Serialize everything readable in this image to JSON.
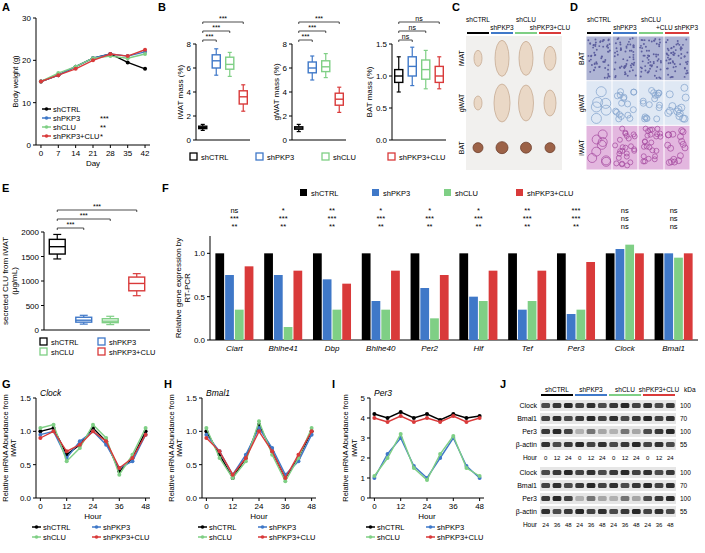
{
  "chart_data": [
    {
      "type": "line",
      "panel": "A",
      "x_label": "Day",
      "y_label": "Body weight (g)",
      "x": [
        0,
        7,
        14,
        21,
        28,
        35,
        42
      ],
      "xlim": [
        -2,
        44
      ],
      "xticks": [
        0,
        7,
        14,
        21,
        28,
        35,
        42
      ],
      "ylim": [
        0,
        30
      ],
      "yticks": [
        0,
        10,
        20,
        30
      ],
      "legend": "lower left",
      "marker": "circle",
      "annotations": [
        "***",
        "**",
        "*"
      ],
      "series": [
        {
          "name": "shCTRL",
          "color": "#000000",
          "values": [
            15,
            16.5,
            18.5,
            20.5,
            21.5,
            19.5,
            18
          ]
        },
        {
          "name": "shPKP3",
          "color": "#3f78c8",
          "values": [
            15,
            16.5,
            18.5,
            20.5,
            21.5,
            21,
            22
          ]
        },
        {
          "name": "shCLU",
          "color": "#7fcf85",
          "values": [
            15,
            17,
            18.5,
            20.5,
            21,
            20.5,
            21.5
          ]
        },
        {
          "name": "shPKP3+CLU",
          "color": "#d93a3a",
          "values": [
            15,
            16.5,
            18,
            20,
            21.5,
            21,
            22.5
          ]
        }
      ]
    },
    {
      "type": "box",
      "panel": "B",
      "legend": "bottom",
      "series": [
        {
          "name": "shCTRL",
          "color": "#000000"
        },
        {
          "name": "shPKP3",
          "color": "#3f78c8"
        },
        {
          "name": "shCLU",
          "color": "#7fcf85"
        },
        {
          "name": "shPKP3+CLU",
          "color": "#d93a3a"
        }
      ],
      "charts": [
        {
          "y_label": "iWAT mass (%)",
          "ylim": [
            0,
            8
          ],
          "yticks": [
            0,
            2,
            4,
            6,
            8
          ],
          "annotations": [
            "***",
            "***",
            "***"
          ],
          "boxes": [
            {
              "min": 0.8,
              "q1": 0.95,
              "median": 1.05,
              "q3": 1.15,
              "max": 1.3
            },
            {
              "min": 5.4,
              "q1": 6.0,
              "median": 6.6,
              "q3": 7.1,
              "max": 7.6
            },
            {
              "min": 5.3,
              "q1": 5.9,
              "median": 6.3,
              "q3": 6.9,
              "max": 7.3
            },
            {
              "min": 2.4,
              "q1": 3.0,
              "median": 3.6,
              "q3": 4.1,
              "max": 4.6
            }
          ]
        },
        {
          "y_label": "gWAT mass (%)",
          "ylim": [
            0,
            8
          ],
          "yticks": [
            0,
            2,
            4,
            6,
            8
          ],
          "annotations": [
            "***",
            "***",
            "***"
          ],
          "boxes": [
            {
              "min": 0.7,
              "q1": 0.9,
              "median": 1.0,
              "q3": 1.1,
              "max": 1.3
            },
            {
              "min": 5.0,
              "q1": 5.6,
              "median": 6.0,
              "q3": 6.5,
              "max": 7.0
            },
            {
              "min": 5.2,
              "q1": 5.7,
              "median": 6.1,
              "q3": 6.6,
              "max": 7.2
            },
            {
              "min": 2.3,
              "q1": 2.9,
              "median": 3.4,
              "q3": 3.9,
              "max": 4.4
            }
          ]
        },
        {
          "y_label": "BAT mass (%)",
          "ylim": [
            0,
            1.5
          ],
          "yticks": [
            {
              "value": 0,
              "label": "0.0"
            },
            {
              "value": 0.5,
              "label": "0.5"
            },
            {
              "value": 1,
              "label": "1.0"
            },
            {
              "value": 1.5,
              "label": "1.5"
            }
          ],
          "annotations": [
            "ns",
            "ns",
            "ns"
          ],
          "boxes": [
            {
              "min": 0.75,
              "q1": 0.9,
              "median": 1.0,
              "q3": 1.1,
              "max": 1.3
            },
            {
              "min": 0.85,
              "q1": 1.0,
              "median": 1.15,
              "q3": 1.3,
              "max": 1.45
            },
            {
              "min": 0.8,
              "q1": 0.95,
              "median": 1.1,
              "q3": 1.25,
              "max": 1.4
            },
            {
              "min": 0.8,
              "q1": 0.9,
              "median": 1.0,
              "q3": 1.15,
              "max": 1.3
            }
          ]
        }
      ]
    },
    {
      "type": "image",
      "panel": "C",
      "columns": [
        "shCTRL",
        "shPKP3",
        "shCLU",
        "shPKP3+CLU"
      ],
      "colors": [
        "#000000",
        "#3f78c8",
        "#7fcf85",
        "#d93a3a"
      ],
      "rows": [
        "iWAT",
        "gWAT",
        "BAT"
      ]
    },
    {
      "type": "image",
      "panel": "D",
      "columns": [
        "shCTRL",
        "shPKP3",
        "shCLU",
        "+CLU shPKP3"
      ],
      "colors": [
        "#000000",
        "#3f78c8",
        "#7fcf85",
        "#d93a3a"
      ],
      "rows": [
        "BAT",
        "gWAT",
        "iWAT"
      ]
    },
    {
      "type": "box",
      "panel": "E",
      "legend": "bottom",
      "series": [
        {
          "name": "shCTRL",
          "color": "#000000"
        },
        {
          "name": "shPKP3",
          "color": "#3f78c8"
        },
        {
          "name": "shCLU",
          "color": "#7fcf85"
        },
        {
          "name": "shPKP3+CLU",
          "color": "#d93a3a"
        }
      ],
      "charts": [
        {
          "y_label": "secreted CLU from iWAT (μg/mL)",
          "ylim": [
            0,
            2000
          ],
          "yticks": [
            0,
            500,
            1000,
            1500,
            2000
          ],
          "annotations": [
            "***",
            "***",
            "***"
          ],
          "boxes": [
            {
              "min": 1450,
              "q1": 1550,
              "median": 1700,
              "q3": 1850,
              "max": 1950
            },
            {
              "min": 120,
              "q1": 160,
              "median": 200,
              "q3": 260,
              "max": 300
            },
            {
              "min": 110,
              "q1": 150,
              "median": 180,
              "q3": 230,
              "max": 280
            },
            {
              "min": 700,
              "q1": 800,
              "median": 950,
              "q3": 1080,
              "max": 1150
            }
          ]
        }
      ]
    },
    {
      "type": "bar",
      "panel": "F",
      "y_label": "Relative gene expression by RT-PCR",
      "categories": [
        "Ciart",
        "Bhlhe41",
        "Dbp",
        "Bhlhe40",
        "Per2",
        "Hlf",
        "Tef",
        "Per3",
        "Clock",
        "Bmal1"
      ],
      "ylim": [
        0,
        1.2
      ],
      "yticks": [
        {
          "value": 0,
          "label": "0.0"
        },
        {
          "value": 0.5,
          "label": "0.5"
        },
        {
          "value": 1,
          "label": "1.0"
        }
      ],
      "legend": "top",
      "annotations": [
        [
          "ns",
          "***",
          "**"
        ],
        [
          "*",
          "***",
          "**"
        ],
        [
          "**",
          "***",
          "**"
        ],
        [
          "*",
          "***",
          "**"
        ],
        [
          "*",
          "***",
          "**"
        ],
        [
          "*",
          "***",
          "**"
        ],
        [
          "**",
          "***",
          "**"
        ],
        [
          "***",
          "***",
          "**"
        ],
        [
          "ns",
          "ns",
          "ns"
        ],
        [
          "ns",
          "ns",
          "ns"
        ]
      ],
      "series": [
        {
          "name": "shCTRL",
          "color": "#000000",
          "values": [
            1,
            1,
            1,
            1,
            1,
            1,
            1,
            1,
            1,
            1
          ]
        },
        {
          "name": "shPKP3",
          "color": "#3f78c8",
          "values": [
            0.75,
            0.75,
            0.7,
            0.45,
            0.6,
            0.5,
            0.35,
            0.3,
            1.05,
            1.0
          ]
        },
        {
          "name": "shCLU",
          "color": "#7fcf85",
          "values": [
            0.35,
            0.15,
            0.35,
            0.35,
            0.25,
            0.45,
            0.45,
            0.35,
            1.1,
            0.95
          ]
        },
        {
          "name": "shPKP3+CLU",
          "color": "#d93a3a",
          "values": [
            0.85,
            0.8,
            0.65,
            0.8,
            0.75,
            0.8,
            0.8,
            0.9,
            1.0,
            1.0
          ]
        }
      ]
    },
    {
      "type": "line",
      "panel": "G",
      "title": "Clock",
      "x_label": "Hour",
      "y_label": "Relative mRNA Abundance from iWAT",
      "x": [
        0,
        6,
        12,
        18,
        24,
        30,
        36,
        42,
        48
      ],
      "xlim": [
        -2,
        50
      ],
      "xticks": [
        0,
        12,
        24,
        36,
        48
      ],
      "ylim": [
        0,
        1.5
      ],
      "yticks": [
        {
          "value": 0,
          "label": "0.0"
        },
        {
          "value": 0.5,
          "label": "0.5"
        },
        {
          "value": 1,
          "label": "1.0"
        },
        {
          "value": 1.5,
          "label": "1.5"
        }
      ],
      "legend": "bottom",
      "marker": "circle",
      "series": [
        {
          "name": "shCTRL",
          "color": "#000000",
          "values": [
            1.0,
            1.05,
            0.65,
            0.8,
            1.05,
            0.85,
            0.4,
            0.6,
            1.0
          ]
        },
        {
          "name": "shPKP3",
          "color": "#3f78c8",
          "values": [
            0.95,
            1.0,
            0.6,
            0.85,
            1.0,
            0.8,
            0.45,
            0.55,
            0.95
          ]
        },
        {
          "name": "shCLU",
          "color": "#7fcf85",
          "values": [
            1.05,
            1.1,
            0.55,
            0.75,
            1.1,
            0.9,
            0.35,
            0.65,
            1.05
          ]
        },
        {
          "name": "shPKP3+CLU",
          "color": "#d93a3a",
          "values": [
            0.9,
            1.0,
            0.7,
            0.8,
            1.0,
            0.85,
            0.45,
            0.6,
            0.95
          ]
        }
      ]
    },
    {
      "type": "line",
      "panel": "H",
      "title": "Bmal1",
      "x_label": "Hour",
      "y_label": "Relative mRNA Abundance from iWAT",
      "x": [
        0,
        6,
        12,
        18,
        24,
        30,
        36,
        42,
        48
      ],
      "xlim": [
        -2,
        50
      ],
      "xticks": [
        0,
        12,
        24,
        36,
        48
      ],
      "ylim": [
        0,
        1.5
      ],
      "yticks": [
        {
          "value": 0,
          "label": "0.0"
        },
        {
          "value": 0.5,
          "label": "0.5"
        },
        {
          "value": 1,
          "label": "1.0"
        },
        {
          "value": 1.5,
          "label": "1.5"
        }
      ],
      "legend": "bottom",
      "marker": "circle",
      "series": [
        {
          "name": "shCTRL",
          "color": "#000000",
          "values": [
            1.0,
            0.65,
            0.3,
            0.6,
            1.1,
            0.7,
            0.3,
            0.6,
            1.0
          ]
        },
        {
          "name": "shPKP3",
          "color": "#3f78c8",
          "values": [
            0.95,
            0.7,
            0.35,
            0.65,
            1.05,
            0.75,
            0.35,
            0.55,
            0.95
          ]
        },
        {
          "name": "shCLU",
          "color": "#7fcf85",
          "values": [
            1.05,
            0.6,
            0.3,
            0.55,
            1.15,
            0.65,
            0.25,
            0.6,
            1.05
          ]
        },
        {
          "name": "shPKP3+CLU",
          "color": "#d93a3a",
          "values": [
            0.9,
            0.7,
            0.35,
            0.6,
            1.0,
            0.7,
            0.3,
            0.65,
            1.0
          ]
        }
      ]
    },
    {
      "type": "line",
      "panel": "I",
      "title": "Per3",
      "x_label": "Hour",
      "y_label": "Relative mRNA Abundance from iWAT",
      "x": [
        0,
        6,
        12,
        18,
        24,
        30,
        36,
        42,
        48
      ],
      "xlim": [
        -2,
        50
      ],
      "xticks": [
        0,
        12,
        24,
        36,
        48
      ],
      "ylim": [
        0,
        5
      ],
      "yticks": [
        0,
        1,
        2,
        3,
        4,
        5
      ],
      "legend": "bottom",
      "marker": "circle",
      "series": [
        {
          "name": "shCTRL",
          "color": "#000000",
          "values": [
            4.2,
            4.0,
            4.3,
            4.0,
            4.2,
            3.9,
            4.2,
            4.0,
            4.1
          ]
        },
        {
          "name": "shPKP3",
          "color": "#3f78c8",
          "values": [
            1.0,
            2.2,
            3.0,
            1.6,
            1.0,
            2.0,
            3.0,
            1.6,
            1.0
          ]
        },
        {
          "name": "shCLU",
          "color": "#7fcf85",
          "values": [
            1.1,
            2.0,
            3.2,
            1.5,
            0.9,
            2.2,
            3.1,
            1.5,
            1.1
          ]
        },
        {
          "name": "shPKP3+CLU",
          "color": "#d93a3a",
          "values": [
            4.0,
            3.8,
            4.1,
            3.8,
            4.0,
            3.8,
            4.1,
            3.8,
            4.0
          ]
        }
      ]
    },
    {
      "type": "blot",
      "panel": "J",
      "groups": [
        {
          "name": "shCTRL",
          "color": "#000000"
        },
        {
          "name": "shPKP3",
          "color": "#3f78c8"
        },
        {
          "name": "shCLU",
          "color": "#7fcf85"
        },
        {
          "name": "shPKP3+CLU",
          "color": "#d93a3a"
        }
      ],
      "proteins": [
        "Clock",
        "Bmal1",
        "Per3",
        "β-actin"
      ],
      "marker_label": "kDa",
      "markers": [
        100,
        70,
        100,
        55
      ],
      "hour_label": "Hour",
      "hours": [
        [
          0,
          12,
          24
        ],
        [
          24,
          36,
          48
        ]
      ]
    }
  ]
}
